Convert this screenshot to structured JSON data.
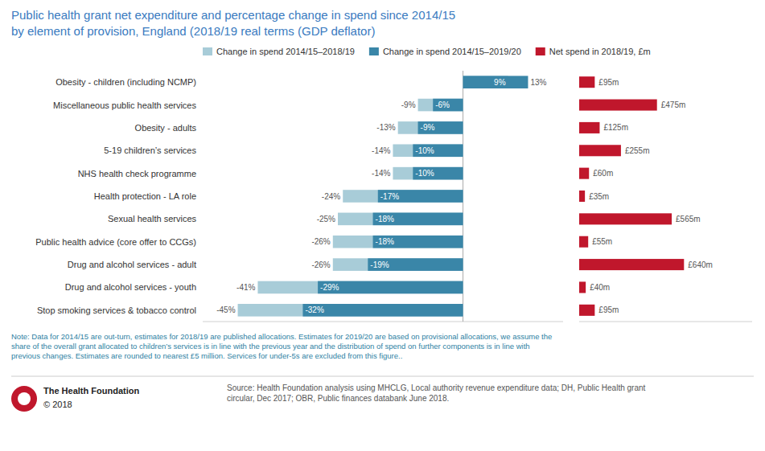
{
  "chart_data": [
    {
      "type": "bar",
      "orientation": "horizontal",
      "title": "Public health grant net expenditure and percentage change in spend since 2014/15",
      "subtitle": "by element of provision, England (2018/19 real terms (GDP deflator)",
      "categories": [
        "Obesity - children (including NCMP)",
        "Miscellaneous public health services",
        "Obesity - adults",
        "5-19 children’s services",
        "NHS health check programme",
        "Health protection - LA role",
        "Sexual health services",
        "Public health advice (core offer to CCGs)",
        "Drug and alcohol services - adult",
        "Drug and alcohol services - youth",
        "Stop smoking services & tobacco control"
      ],
      "series": [
        {
          "name": "Change in spend 2014/15–2018/19",
          "color": "#a8ccd8",
          "values": [
            9,
            -9,
            -13,
            -14,
            -14,
            -24,
            -25,
            -26,
            -26,
            -41,
            -45
          ],
          "value_labels": [
            "9%",
            "-9%",
            "-13%",
            "-14%",
            "-14%",
            "-24%",
            "-25%",
            "-26%",
            "-26%",
            "-41%",
            "-45%"
          ]
        },
        {
          "name": "Change in spend 2014/15–2019/20",
          "color": "#3a86a8",
          "values": [
            13,
            -6,
            -9,
            -10,
            -10,
            -17,
            -18,
            -18,
            -19,
            -29,
            -32
          ],
          "value_labels": [
            "13%",
            "-6%",
            "-9%",
            "-10%",
            "-10%",
            "-17%",
            "-18%",
            "-18%",
            "-19%",
            "-29%",
            "-32%"
          ]
        }
      ],
      "xlim": [
        -52,
        20
      ],
      "xticks": [
        0
      ],
      "grid": true,
      "tick_labels": "y",
      "data_labels": true,
      "legend": "upper left",
      "annotations": [
        "Note: Data for 2014/15 are out-turn, estimates for 2018/19 are published allocations. Estimates for 2019/20 are based on provisional allocations, we assume the\nshare of the overall grant allocated to children’s services is in line with the previous year and the distribution of spend on further components is in line with\nprevious changes. Estimates are rounded to nearest £5 million. Services for under-5s are excluded from this figure..",
        "Source: Health Foundation analysis using MHCLG, Local authority revenue expenditure data; DH, Public Health grant\ncircular, Dec 2017; OBR, Public finances databank June 2018.",
        "The Health Foundation",
        "© 2018"
      ]
    },
    {
      "type": "bar",
      "orientation": "horizontal",
      "series": [
        {
          "name": "Net spend in 2018/19, £m",
          "color": "#c0172c",
          "values": [
            95,
            475,
            125,
            255,
            60,
            35,
            565,
            55,
            640,
            40,
            95
          ],
          "value_labels": [
            "£95m",
            "£475m",
            "£125m",
            "£255m",
            "£60m",
            "£35m",
            "£565m",
            "£55m",
            "£640m",
            "£40m",
            "£95m"
          ]
        }
      ],
      "xlim": [
        0,
        1056
      ],
      "grid": false,
      "tick_labels": false,
      "data_labels": true,
      "legend": "upper left"
    }
  ]
}
